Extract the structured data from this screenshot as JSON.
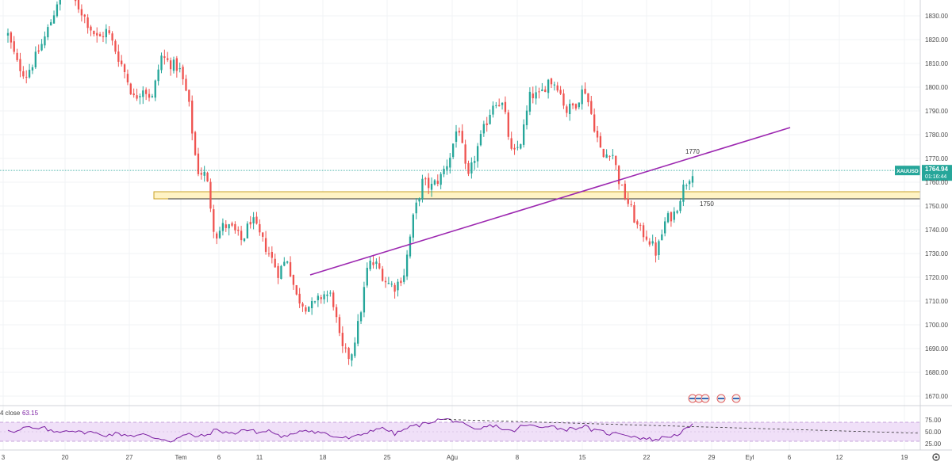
{
  "chart_data": [
    {
      "type": "candlestick",
      "symbol": "XAUUSD",
      "last_price": "1764.94",
      "countdown": "01:16:44",
      "ylim": [
        1664,
        1838
      ],
      "y_ticks": [
        "1830.00",
        "1820.00",
        "1810.00",
        "1800.00",
        "1790.00",
        "1780.00",
        "1770.00",
        "1760.00",
        "1750.00",
        "1740.00",
        "1730.00",
        "1720.00",
        "1710.00",
        "1700.00",
        "1690.00",
        "1680.00",
        "1670.00"
      ],
      "x_ticks": [
        "3",
        "20",
        "27",
        "Tem",
        "6",
        "11",
        "18",
        "25",
        "Ağu",
        "8",
        "15",
        "22",
        "29",
        "Eyl",
        "6",
        "12",
        "19"
      ],
      "annotations": [
        {
          "text": "1770",
          "kind": "trendline-label"
        },
        {
          "text": "1750",
          "kind": "zone-label"
        }
      ],
      "trendline": {
        "from": {
          "x": "Tem 13",
          "y": 1721
        },
        "to": {
          "x": "Ağu 28",
          "y": 1783
        },
        "color": "#9c27b0"
      },
      "support_zone": {
        "y_low": 1753,
        "y_high": 1756,
        "color": "#fff3c4",
        "border": "#c9a227"
      },
      "price_line": {
        "y": 1764.94,
        "color": "#26a69a"
      },
      "candle_colors": {
        "up": "#26a69a",
        "down": "#ef5350"
      },
      "path": [
        1822,
        1810,
        1805,
        1812,
        1820,
        1830,
        1843,
        1838,
        1833,
        1826,
        1820,
        1824,
        1815,
        1806,
        1795,
        1800,
        1795,
        1813,
        1810,
        1808,
        1795,
        1765,
        1763,
        1737,
        1742,
        1740,
        1735,
        1745,
        1737,
        1730,
        1722,
        1728,
        1712,
        1708,
        1708,
        1713,
        1712,
        1690,
        1686,
        1702,
        1726,
        1725,
        1718,
        1716,
        1722,
        1745,
        1760,
        1758,
        1762,
        1770,
        1785,
        1760,
        1773,
        1784,
        1795,
        1792,
        1770,
        1778,
        1797,
        1796,
        1803,
        1801,
        1790,
        1793,
        1800,
        1785,
        1770,
        1774,
        1758,
        1750,
        1740,
        1737,
        1730,
        1744,
        1747,
        1758,
        1765
      ]
    },
    {
      "type": "line",
      "indicator_label": "4 close",
      "value": "63.15",
      "ylim": [
        20,
        80
      ],
      "y_ticks": [
        "75.00",
        "50.00",
        "25.00"
      ],
      "band": [
        30,
        70
      ],
      "color": "#7b1fa2",
      "band_color": "#f0e0f8",
      "divergence_line": {
        "from": {
          "x": "Ağu 2",
          "y": 76
        },
        "to": {
          "x": "Eyl 19",
          "y": 47
        }
      },
      "values": [
        55,
        50,
        60,
        55,
        58,
        49,
        52,
        54,
        48,
        50,
        45,
        43,
        46,
        44,
        42,
        44,
        38,
        36,
        30,
        38,
        45,
        40,
        42,
        54,
        50,
        45,
        55,
        52,
        48,
        53,
        42,
        38,
        50,
        55,
        50,
        48,
        40,
        38,
        36,
        42,
        50,
        58,
        55,
        45,
        55,
        62,
        65,
        72,
        76,
        75,
        72,
        60,
        52,
        60,
        64,
        55,
        50,
        62,
        63,
        60,
        64,
        58,
        55,
        58,
        62,
        52,
        50,
        45,
        48,
        42,
        38,
        35,
        33,
        40,
        42,
        52,
        63
      ]
    }
  ]
}
